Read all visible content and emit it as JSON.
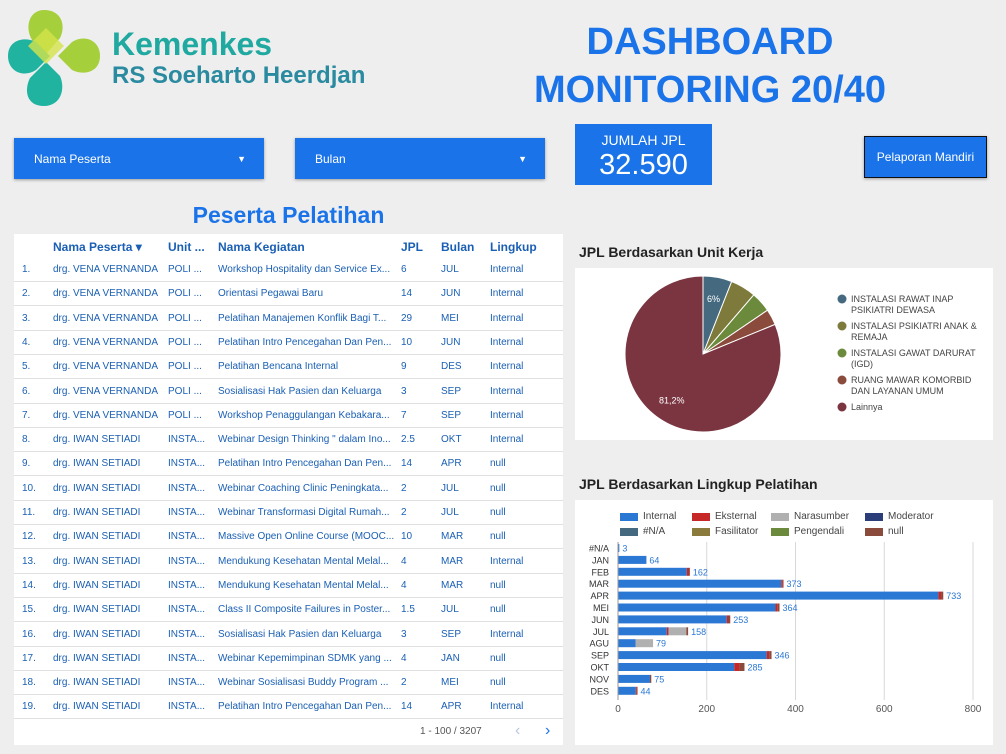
{
  "header": {
    "logo_brand": "Kemenkes",
    "logo_subtitle": "RS Soeharto Heerdjan",
    "title_lines": [
      "DASHBOARD",
      "MONITORING 20/40"
    ]
  },
  "filters": [
    "Nama Peserta",
    "Bulan"
  ],
  "kpi": {
    "label": "JUMLAH JPL",
    "value": "32.590"
  },
  "report_button": "Pelaporan Mandiri",
  "table": {
    "title": "Peserta Pelatihan",
    "columns": [
      "Nama Peserta",
      "Unit ...",
      "Nama Kegiatan",
      "JPL",
      "Bulan",
      "Lingkup"
    ],
    "rows": [
      [
        "1.",
        "drg. VENA VERNANDA",
        "POLI ...",
        "Workshop Hospitality dan Service Ex...",
        "6",
        "JUL",
        "Internal"
      ],
      [
        "2.",
        "drg. VENA VERNANDA",
        "POLI ...",
        "Orientasi Pegawai Baru",
        "14",
        "JUN",
        "Internal"
      ],
      [
        "3.",
        "drg. VENA VERNANDA",
        "POLI ...",
        "Pelatihan Manajemen Konflik Bagi T...",
        "29",
        "MEI",
        "Internal"
      ],
      [
        "4.",
        "drg. VENA VERNANDA",
        "POLI ...",
        "Pelatihan Intro Pencegahan Dan Pen...",
        "10",
        "JUN",
        "Internal"
      ],
      [
        "5.",
        "drg. VENA VERNANDA",
        "POLI ...",
        "Pelatihan Bencana Internal",
        "9",
        "DES",
        "Internal"
      ],
      [
        "6.",
        "drg. VENA VERNANDA",
        "POLI ...",
        "Sosialisasi Hak Pasien dan Keluarga",
        "3",
        "SEP",
        "Internal"
      ],
      [
        "7.",
        "drg. VENA VERNANDA",
        "POLI ...",
        "Workshop Penaggulangan Kebakara...",
        "7",
        "SEP",
        "Internal"
      ],
      [
        "8.",
        "drg. IWAN SETIADI",
        "INSTA...",
        "Webinar Design Thinking \" dalam Ino...",
        "2.5",
        "OKT",
        "Internal"
      ],
      [
        "9.",
        "drg. IWAN SETIADI",
        "INSTA...",
        "Pelatihan Intro Pencegahan Dan Pen...",
        "14",
        "APR",
        "null"
      ],
      [
        "10.",
        "drg. IWAN SETIADI",
        "INSTA...",
        "Webinar Coaching Clinic Peningkata...",
        "2",
        "JUL",
        "null"
      ],
      [
        "11.",
        "drg. IWAN SETIADI",
        "INSTA...",
        "Webinar Transformasi Digital Rumah...",
        "2",
        "JUL",
        "null"
      ],
      [
        "12.",
        "drg. IWAN SETIADI",
        "INSTA...",
        "Massive Open Online Course (MOOC...",
        "10",
        "MAR",
        "null"
      ],
      [
        "13.",
        "drg. IWAN SETIADI",
        "INSTA...",
        "Mendukung Kesehatan Mental Melal...",
        "4",
        "MAR",
        "Internal"
      ],
      [
        "14.",
        "drg. IWAN SETIADI",
        "INSTA...",
        "Mendukung Kesehatan Mental Melal...",
        "4",
        "MAR",
        "null"
      ],
      [
        "15.",
        "drg. IWAN SETIADI",
        "INSTA...",
        "Class II Composite Failures in Poster...",
        "1.5",
        "JUL",
        "null"
      ],
      [
        "16.",
        "drg. IWAN SETIADI",
        "INSTA...",
        "Sosialisasi Hak Pasien dan Keluarga",
        "3",
        "SEP",
        "Internal"
      ],
      [
        "17.",
        "drg. IWAN SETIADI",
        "INSTA...",
        "Webinar Kepemimpinan SDMK yang ...",
        "4",
        "JAN",
        "null"
      ],
      [
        "18.",
        "drg. IWAN SETIADI",
        "INSTA...",
        "Webinar Sosialisasi Buddy Program ...",
        "2",
        "MEI",
        "null"
      ],
      [
        "19.",
        "drg. IWAN SETIADI",
        "INSTA...",
        "Pelatihan Intro Pencegahan Dan Pen...",
        "14",
        "APR",
        "Internal"
      ]
    ],
    "pagination": "1 - 100 / 3207"
  },
  "chart_data": [
    {
      "type": "pie",
      "title": "JPL Berdasarkan Unit Kerja",
      "categories": [
        "INSTALASI RAWAT INAP PSIKIATRI DEWASA",
        "INSTALASI PSIKIATRI ANAK & REMAJA",
        "INSTALASI GAWAT DARURAT (IGD)",
        "RUANG MAWAR KOMORBID DAN LAYANAN UMUM",
        "Lainnya"
      ],
      "values": [
        6,
        5.3,
        4.2,
        3.3,
        81.2
      ],
      "value_labels": [
        "6%",
        null,
        null,
        null,
        "81,2%"
      ],
      "colors": [
        "#456a80",
        "#7d7a3c",
        "#6b8a3c",
        "#8a4a3c",
        "#7a3540"
      ]
    },
    {
      "type": "bar",
      "orientation": "horizontal",
      "stacked": true,
      "title": "JPL Berdasarkan Lingkup Pelatihan",
      "categories": [
        "#N/A",
        "JAN",
        "FEB",
        "MAR",
        "APR",
        "MEI",
        "JUN",
        "JUL",
        "AGU",
        "SEP",
        "OKT",
        "NOV",
        "DES"
      ],
      "series": [
        {
          "name": "Internal",
          "color": "#2b77d4",
          "values": [
            3,
            64,
            155,
            368,
            722,
            355,
            245,
            110,
            40,
            335,
            262,
            72,
            40
          ]
        },
        {
          "name": "Eksternal",
          "color": "#c62828",
          "values": [
            0,
            0,
            5,
            3,
            6,
            5,
            4,
            4,
            0,
            6,
            12,
            0,
            2
          ]
        },
        {
          "name": "Narasumber",
          "color": "#b0b0b0",
          "values": [
            0,
            0,
            0,
            0,
            0,
            0,
            0,
            40,
            39,
            0,
            0,
            0,
            0
          ]
        },
        {
          "name": "Moderator",
          "color": "#2c3e7a",
          "values": [
            0,
            0,
            0,
            0,
            0,
            0,
            0,
            0,
            0,
            0,
            0,
            0,
            0
          ]
        },
        {
          "name": "#N/A",
          "color": "#456a80",
          "values": [
            0,
            0,
            0,
            0,
            0,
            0,
            0,
            0,
            0,
            0,
            0,
            0,
            0
          ]
        },
        {
          "name": "Fasilitator",
          "color": "#8a7a3c",
          "values": [
            0,
            0,
            0,
            0,
            0,
            0,
            0,
            0,
            0,
            0,
            0,
            0,
            0
          ]
        },
        {
          "name": "Pengendali",
          "color": "#6b8a3c",
          "values": [
            0,
            0,
            0,
            0,
            0,
            0,
            0,
            0,
            0,
            0,
            0,
            0,
            0
          ]
        },
        {
          "name": "null",
          "color": "#8a4a3c",
          "values": [
            0,
            0,
            2,
            2,
            5,
            4,
            4,
            4,
            0,
            5,
            11,
            3,
            2
          ]
        }
      ],
      "totals": [
        3,
        64,
        162,
        373,
        733,
        364,
        253,
        158,
        79,
        346,
        285,
        75,
        44
      ],
      "xlim": [
        0,
        800
      ],
      "xticks": [
        0,
        200,
        400,
        600,
        800
      ],
      "grid": true
    }
  ]
}
